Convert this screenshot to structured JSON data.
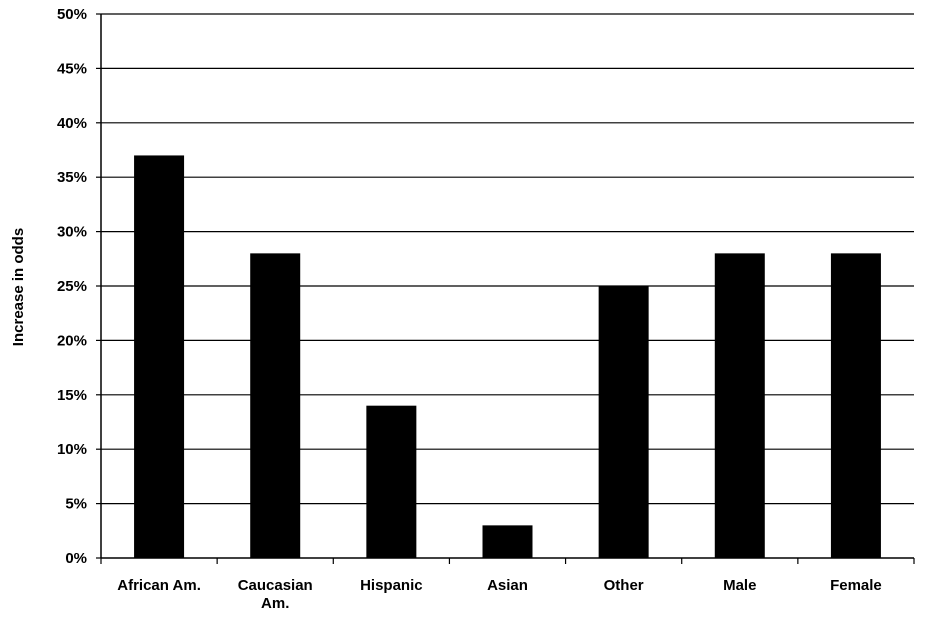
{
  "chart_data": {
    "type": "bar",
    "categories": [
      [
        "African Am."
      ],
      [
        "Caucasian",
        "Am."
      ],
      [
        "Hispanic"
      ],
      [
        "Asian"
      ],
      [
        "Other"
      ],
      [
        "Male"
      ],
      [
        "Female"
      ]
    ],
    "values": [
      37,
      28,
      14,
      3,
      25,
      28,
      28
    ],
    "ylabel": "Increase in odds",
    "ylim": [
      0,
      50
    ],
    "yticks": [
      "0%",
      "5%",
      "10%",
      "15%",
      "20%",
      "25%",
      "30%",
      "35%",
      "40%",
      "45%",
      "50%"
    ],
    "grid": true,
    "bar_color": "#000000"
  }
}
